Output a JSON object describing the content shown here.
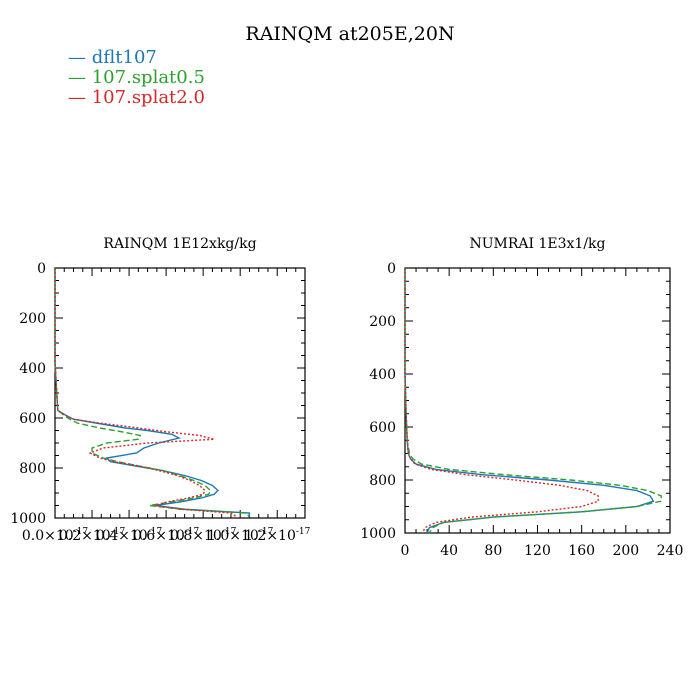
{
  "page_title": "RAINQM at205E,20N",
  "legend": [
    {
      "label": "dflt107",
      "color": "#1f77b4",
      "dash": "solid"
    },
    {
      "label": "107.splat0.5",
      "color": "#2ca02c",
      "dash": "dashed"
    },
    {
      "label": "107.splat2.0",
      "color": "#d62728",
      "dash": "dotted"
    }
  ],
  "chart_data": [
    {
      "type": "line",
      "title": "RAINQM  1E12xkg/kg",
      "xlabel": "",
      "ylabel": "",
      "xlim": [
        0,
        1.35e-17
      ],
      "ylim": [
        1000,
        0
      ],
      "x_ticks": [
        0,
        2e-18,
        4e-18,
        6e-18,
        8e-18,
        1e-17,
        1.2e-17
      ],
      "x_tick_labels": [
        "0.0×10",
        "0.2×10",
        "0.4×10",
        "0.6×10",
        "0.8×10",
        "1.0×10",
        "1.2×10"
      ],
      "x_tick_exponent": "-17",
      "y_ticks": [
        0,
        200,
        400,
        600,
        800,
        1000
      ],
      "series": [
        {
          "name": "dflt107",
          "color": "#1f77b4",
          "y": [
            0,
            380,
            570,
            590,
            605,
            620,
            640,
            650,
            665,
            680,
            700,
            720,
            740,
            760,
            775,
            790,
            810,
            830,
            850,
            870,
            890,
            905,
            920,
            935,
            950,
            965,
            980,
            995
          ],
          "values": [
            0,
            0,
            1.5e-19,
            6e-19,
            1e-18,
            2.2e-18,
            3.8e-18,
            5e-18,
            6.3e-18,
            6.7e-18,
            5.6e-18,
            4.8e-18,
            4.4e-18,
            2.8e-18,
            3e-18,
            4.2e-18,
            5.8e-18,
            7e-18,
            7.9e-18,
            8.5e-18,
            8.8e-18,
            8.6e-18,
            7.9e-18,
            6.8e-18,
            5.4e-18,
            7e-18,
            1.05e-17,
            1.05e-17
          ]
        },
        {
          "name": "107.splat0.5",
          "color": "#2ca02c",
          "y": [
            0,
            380,
            570,
            590,
            605,
            620,
            640,
            655,
            670,
            685,
            700,
            720,
            740,
            760,
            775,
            790,
            810,
            830,
            850,
            870,
            890,
            905,
            920,
            935,
            950,
            965,
            980,
            995
          ],
          "values": [
            0,
            0,
            1.5e-19,
            5e-19,
            8e-19,
            1.2e-18,
            2.4e-18,
            3.6e-18,
            4.6e-18,
            4.5e-18,
            2.8e-18,
            2e-18,
            2e-18,
            2.6e-18,
            3.4e-18,
            4.4e-18,
            5.8e-18,
            6.7e-18,
            7.5e-18,
            8.1e-18,
            8.4e-18,
            8.3e-18,
            7.5e-18,
            6.3e-18,
            5.1e-18,
            6.8e-18,
            1.03e-17,
            1.05e-17
          ]
        },
        {
          "name": "107.splat2.0",
          "color": "#d62728",
          "y": [
            0,
            380,
            570,
            590,
            605,
            620,
            640,
            655,
            670,
            685,
            700,
            720,
            740,
            760,
            775,
            790,
            810,
            830,
            850,
            870,
            890,
            905,
            920,
            935,
            950,
            965,
            980,
            995
          ],
          "values": [
            0,
            0,
            1.5e-19,
            6e-19,
            1e-18,
            2.4e-18,
            4.5e-18,
            6e-18,
            7.8e-18,
            8.6e-18,
            5e-18,
            2.6e-18,
            1.9e-18,
            2.4e-18,
            3.2e-18,
            4.4e-18,
            5.6e-18,
            6.6e-18,
            7.3e-18,
            7.8e-18,
            8.1e-18,
            8e-18,
            7.2e-18,
            6.1e-18,
            5.4e-18,
            6.8e-18,
            9.5e-18,
            9.8e-18
          ]
        }
      ]
    },
    {
      "type": "line",
      "title": "NUMRAI  1E3x1/kg",
      "xlabel": "",
      "ylabel": "",
      "xlim": [
        0,
        240
      ],
      "ylim": [
        1000,
        0
      ],
      "x_ticks": [
        0,
        40,
        80,
        120,
        160,
        200,
        240
      ],
      "x_tick_labels": [
        "0",
        "40",
        "80",
        "120",
        "160",
        "200",
        "240"
      ],
      "y_ticks": [
        0,
        200,
        400,
        600,
        800,
        1000
      ],
      "series": [
        {
          "name": "dflt107",
          "color": "#1f77b4",
          "y": [
            0,
            400,
            550,
            650,
            700,
            720,
            740,
            760,
            780,
            800,
            820,
            840,
            860,
            880,
            900,
            920,
            940,
            960,
            980,
            1000
          ],
          "values": [
            0,
            0,
            1,
            2,
            3,
            5,
            10,
            28,
            70,
            130,
            180,
            210,
            222,
            225,
            210,
            160,
            80,
            35,
            22,
            20
          ]
        },
        {
          "name": "107.splat0.5",
          "color": "#2ca02c",
          "y": [
            0,
            400,
            550,
            650,
            700,
            720,
            740,
            760,
            780,
            800,
            820,
            840,
            860,
            880,
            900,
            920,
            940,
            960,
            980,
            1000
          ],
          "values": [
            0,
            0,
            1,
            2,
            4,
            7,
            15,
            40,
            90,
            150,
            195,
            220,
            232,
            232,
            210,
            160,
            80,
            35,
            25,
            22
          ]
        },
        {
          "name": "107.splat2.0",
          "color": "#d62728",
          "y": [
            0,
            400,
            550,
            650,
            700,
            720,
            740,
            760,
            780,
            800,
            820,
            840,
            860,
            880,
            900,
            920,
            940,
            960,
            980,
            1000
          ],
          "values": [
            0,
            0,
            1,
            2,
            3,
            5,
            9,
            24,
            55,
            100,
            140,
            165,
            175,
            175,
            160,
            120,
            60,
            28,
            18,
            16
          ]
        }
      ]
    }
  ]
}
